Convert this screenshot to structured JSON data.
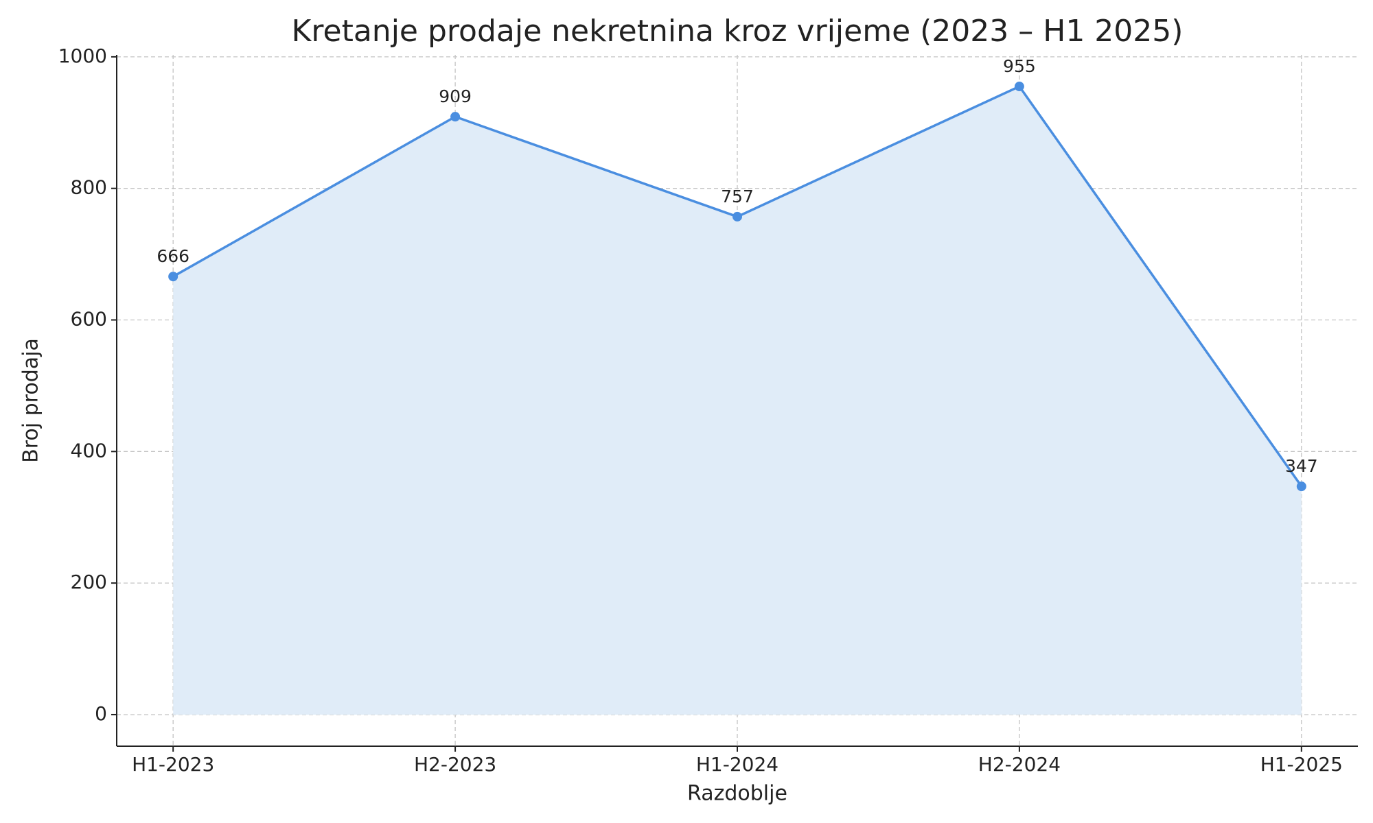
{
  "chart_data": {
    "type": "area-line",
    "title": "Kretanje prodaje nekretnina kroz vrijeme (2023 – H1 2025)",
    "x_label": "Razdoblje",
    "y_label": "Broj prodaja",
    "categories": [
      "H1-2023",
      "H2-2023",
      "H1-2024",
      "H2-2024",
      "H1-2025"
    ],
    "series": [
      {
        "name": "Broj prodaja",
        "color": "#4a8ee0",
        "fill": "#e0ecf8",
        "values": [
          666,
          909,
          757,
          955,
          347
        ]
      }
    ],
    "ylim": [
      -48,
      1003
    ],
    "yticks": [
      0,
      200,
      400,
      600,
      800,
      1000
    ],
    "grid": true,
    "data_labels": true
  }
}
